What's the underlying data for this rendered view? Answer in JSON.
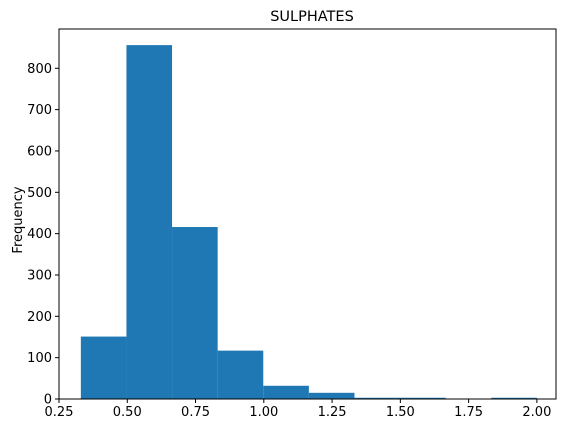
{
  "chart_data": {
    "type": "bar",
    "title": "SULPHATES",
    "xlabel": "",
    "ylabel": "Frequency",
    "xlim": [
      0.25,
      2.07
    ],
    "ylim": [
      0,
      895
    ],
    "bin_edges": [
      0.33,
      0.497,
      0.664,
      0.831,
      0.998,
      1.165,
      1.332,
      1.499,
      1.666,
      1.833,
      2.0
    ],
    "values": [
      151,
      856,
      416,
      117,
      32,
      15,
      3,
      3,
      0,
      3
    ],
    "xticks": [
      0.25,
      0.5,
      0.75,
      1.0,
      1.25,
      1.5,
      1.75,
      2.0
    ],
    "xtick_labels": [
      "0.25",
      "0.50",
      "0.75",
      "1.00",
      "1.25",
      "1.50",
      "1.75",
      "2.00"
    ],
    "yticks": [
      0,
      100,
      200,
      300,
      400,
      500,
      600,
      700,
      800
    ],
    "ytick_labels": [
      "0",
      "100",
      "200",
      "300",
      "400",
      "500",
      "600",
      "700",
      "800"
    ],
    "grid": false,
    "bar_color": "#1f77b4"
  }
}
